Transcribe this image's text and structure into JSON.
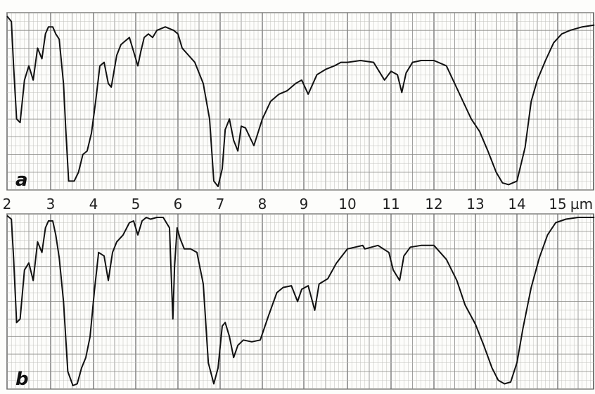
{
  "chart_data": [
    {
      "type": "line",
      "panel_label": "a",
      "xlabel": "",
      "ylabel": "",
      "x_unit": "µm",
      "xlim": [
        2,
        15.9
      ],
      "ylim": [
        0,
        100
      ],
      "grid": true,
      "series": [
        {
          "x": [
            2.0,
            2.1,
            2.15,
            2.22,
            2.3,
            2.4,
            2.5,
            2.6,
            2.7,
            2.8,
            2.88,
            2.95,
            3.05,
            3.12,
            3.2,
            3.3,
            3.35,
            3.42,
            3.55,
            3.65,
            3.75,
            3.85,
            3.95,
            4.05,
            4.15,
            4.25,
            4.35,
            4.42,
            4.55,
            4.65,
            4.75,
            4.85,
            4.95,
            5.05,
            5.12,
            5.2,
            5.3,
            5.4,
            5.5,
            5.7,
            5.9,
            6.0,
            6.1,
            6.25,
            6.4,
            6.6,
            6.75,
            6.85,
            6.95,
            7.05,
            7.12,
            7.22,
            7.32,
            7.42,
            7.5,
            7.6,
            7.8,
            8.0,
            8.2,
            8.4,
            8.6,
            8.8,
            8.95,
            9.1,
            9.3,
            9.5,
            9.7,
            9.85,
            10.0,
            10.3,
            10.6,
            10.85,
            11.0,
            11.15,
            11.25,
            11.35,
            11.5,
            11.7,
            12.0,
            12.3,
            12.5,
            12.7,
            12.9,
            13.1,
            13.3,
            13.5,
            13.65,
            13.8,
            14.0,
            14.2,
            14.35,
            14.5,
            14.7,
            14.9,
            15.1,
            15.3,
            15.6,
            15.9
          ],
          "values": [
            98,
            95,
            70,
            40,
            38,
            62,
            70,
            62,
            80,
            74,
            88,
            92,
            92,
            88,
            85,
            60,
            35,
            5,
            5,
            10,
            20,
            22,
            32,
            50,
            70,
            72,
            60,
            58,
            76,
            82,
            84,
            86,
            78,
            70,
            78,
            86,
            88,
            86,
            90,
            92,
            90,
            88,
            80,
            76,
            72,
            60,
            40,
            5,
            2,
            12,
            34,
            40,
            28,
            22,
            36,
            35,
            25,
            40,
            50,
            54,
            56,
            60,
            62,
            54,
            65,
            68,
            70,
            72,
            72,
            73,
            72,
            62,
            67,
            65,
            55,
            66,
            72,
            73,
            73,
            70,
            60,
            50,
            40,
            33,
            22,
            10,
            4,
            3,
            5,
            24,
            50,
            62,
            73,
            83,
            88,
            90,
            92,
            93
          ]
        }
      ]
    },
    {
      "type": "line",
      "panel_label": "b",
      "xlabel": "",
      "ylabel": "",
      "x_unit": "µm",
      "xlim": [
        2,
        15.9
      ],
      "ylim": [
        0,
        100
      ],
      "grid": true,
      "series": [
        {
          "x": [
            2.0,
            2.1,
            2.15,
            2.22,
            2.3,
            2.4,
            2.5,
            2.6,
            2.7,
            2.8,
            2.88,
            2.95,
            3.05,
            3.12,
            3.2,
            3.3,
            3.4,
            3.52,
            3.62,
            3.72,
            3.82,
            3.92,
            4.02,
            4.12,
            4.25,
            4.35,
            4.45,
            4.55,
            4.7,
            4.85,
            4.95,
            5.05,
            5.15,
            5.25,
            5.35,
            5.5,
            5.65,
            5.8,
            5.88,
            5.92,
            5.98,
            6.05,
            6.15,
            6.3,
            6.45,
            6.6,
            6.72,
            6.85,
            6.95,
            7.05,
            7.12,
            7.22,
            7.32,
            7.42,
            7.55,
            7.75,
            7.95,
            8.15,
            8.35,
            8.5,
            8.7,
            8.85,
            8.95,
            9.1,
            9.25,
            9.35,
            9.55,
            9.75,
            10.0,
            10.35,
            10.4,
            10.7,
            10.95,
            11.05,
            11.2,
            11.3,
            11.45,
            11.7,
            12.0,
            12.3,
            12.55,
            12.75,
            13.0,
            13.2,
            13.4,
            13.55,
            13.7,
            13.85,
            14.0,
            14.15,
            14.35,
            14.55,
            14.75,
            14.95,
            15.2,
            15.5,
            15.9
          ],
          "values": [
            99,
            97,
            75,
            38,
            40,
            68,
            72,
            62,
            84,
            78,
            92,
            96,
            96,
            88,
            75,
            50,
            10,
            2,
            3,
            12,
            18,
            30,
            56,
            78,
            76,
            62,
            78,
            84,
            88,
            95,
            96,
            88,
            96,
            98,
            97,
            98,
            98,
            92,
            40,
            70,
            92,
            86,
            80,
            80,
            78,
            60,
            15,
            3,
            12,
            36,
            38,
            30,
            18,
            25,
            28,
            27,
            28,
            42,
            55,
            58,
            59,
            50,
            57,
            59,
            45,
            60,
            63,
            72,
            80,
            82,
            80,
            82,
            78,
            68,
            62,
            76,
            81,
            82,
            82,
            74,
            62,
            48,
            37,
            25,
            12,
            5,
            3,
            4,
            15,
            35,
            58,
            75,
            88,
            95,
            97,
            98,
            98
          ]
        }
      ]
    }
  ],
  "axis": {
    "tick_labels": [
      "2",
      "3",
      "4",
      "5",
      "6",
      "7",
      "8",
      "9",
      "10",
      "11",
      "12",
      "13",
      "14",
      "15"
    ],
    "unit": "µm"
  }
}
